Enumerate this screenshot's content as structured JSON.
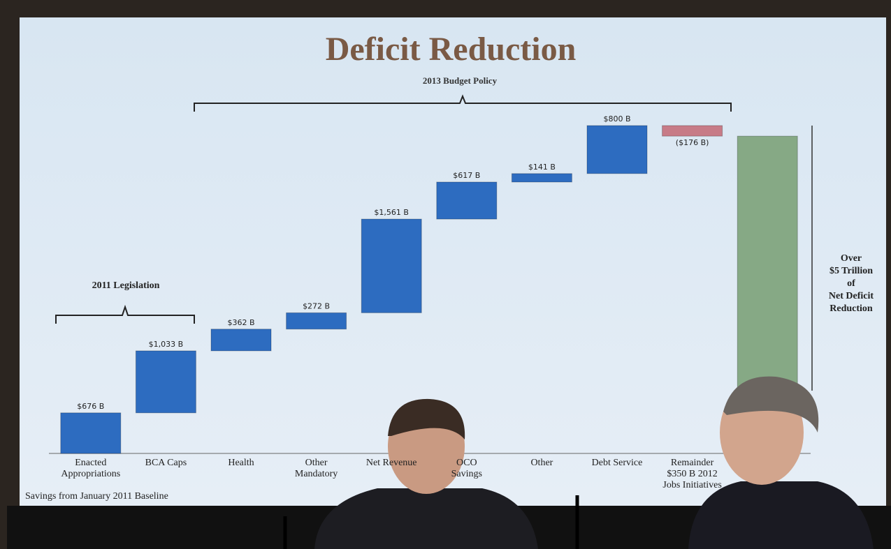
{
  "chart_data": {
    "type": "waterfall",
    "title": "Deficit Reduction",
    "subtitle": "2013 Budget Policy",
    "categories": [
      "Enacted\nAppropriations",
      "BCA Caps",
      "Health",
      "Other\nMandatory",
      "Net Revenue",
      "OCO\nSavings",
      "Other",
      "Debt Service",
      "Remainder\n$350 B 2012\nJobs Initiatives",
      null
    ],
    "values": [
      676,
      1033,
      362,
      272,
      1561,
      617,
      141,
      800,
      -176,
      5286
    ],
    "value_labels": [
      "$676 B",
      "$1,033 B",
      "$362 B",
      "$272 B",
      "$1,561 B",
      "$617 B",
      "$141 B",
      "$800 B",
      "($176 B)",
      null
    ],
    "colors": [
      "#2d6cc0",
      "#2d6cc0",
      "#2d6cc0",
      "#2d6cc0",
      "#2d6cc0",
      "#2d6cc0",
      "#2d6cc0",
      "#2d6cc0",
      "#c77b87",
      "#86a985"
    ],
    "annotations": {
      "legislation": "2011 Legislation",
      "total": "Over\n$5 Trillion\nof\nNet Deficit\nReduction",
      "footnote": "Savings from January 2011 Baseline"
    }
  }
}
